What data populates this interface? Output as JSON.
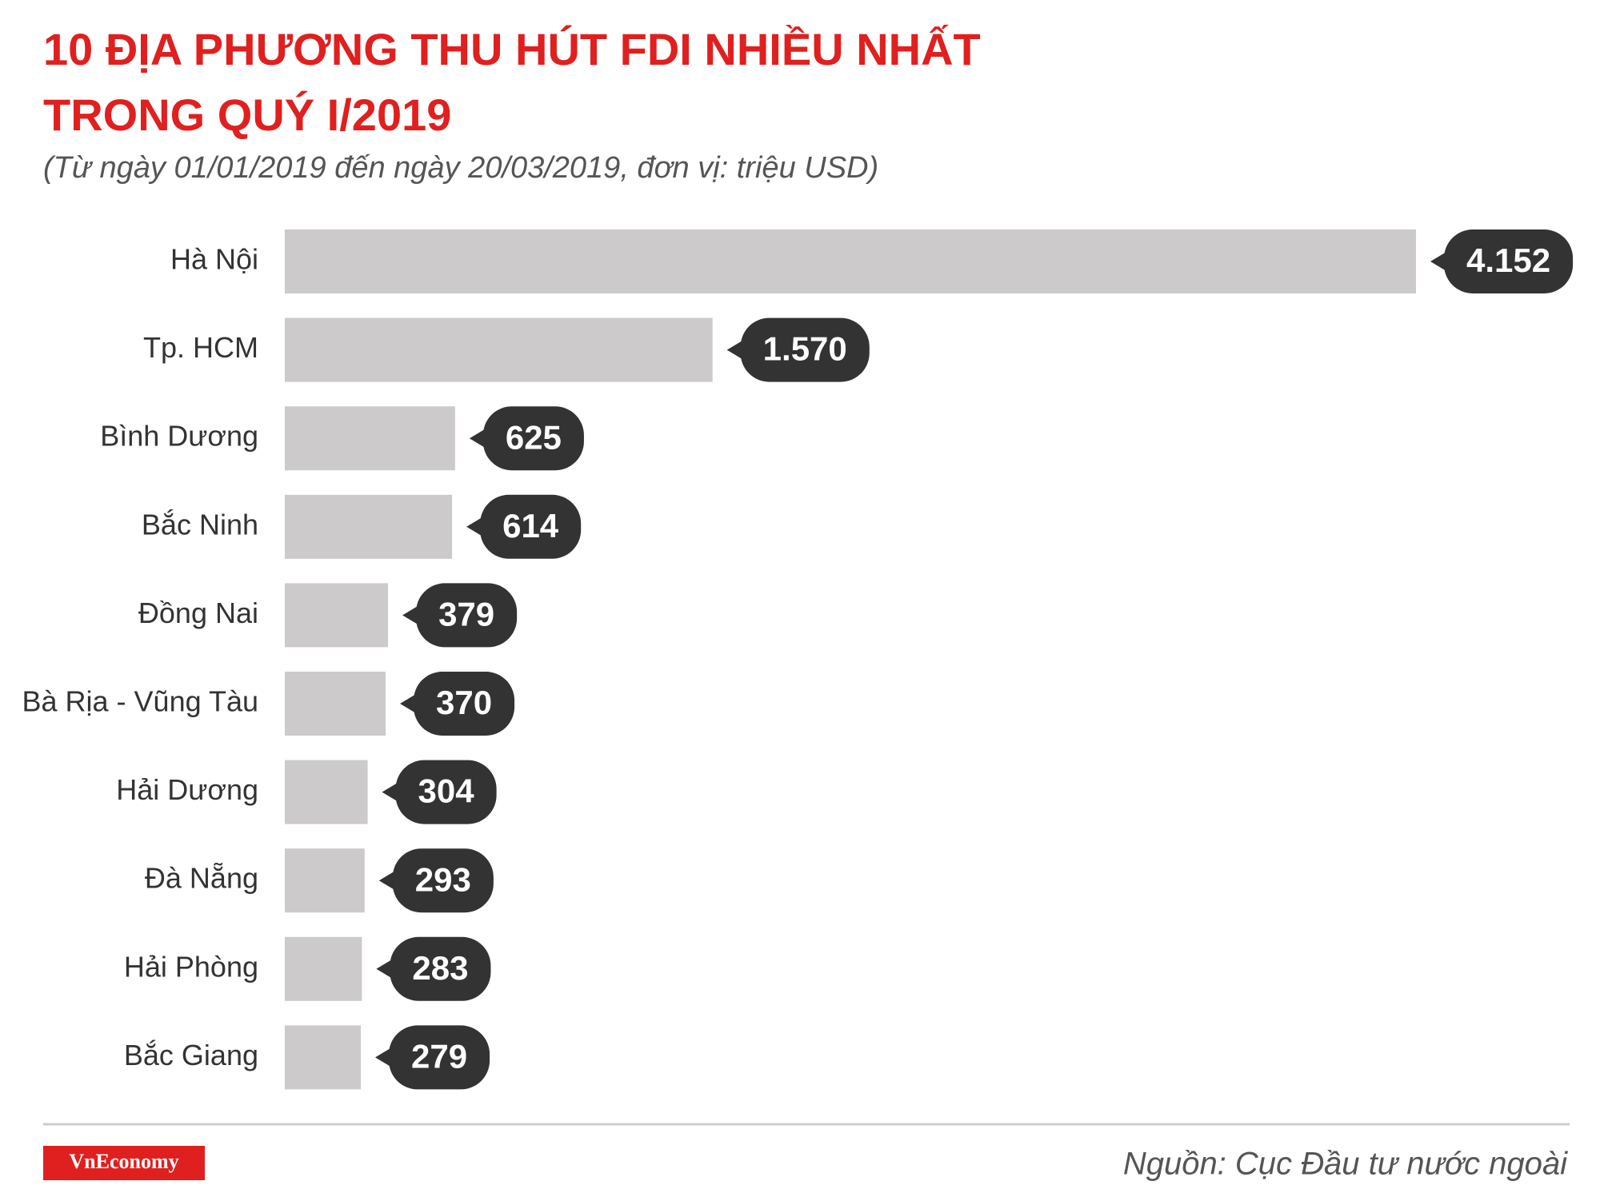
{
  "chart_data": {
    "type": "bar",
    "orientation": "horizontal",
    "title": [
      "10 ĐỊA PHƯƠNG THU HÚT FDI NHIỀU NHẤT",
      "TRONG QUÝ I/2019"
    ],
    "subtitle": "(Từ ngày 01/01/2019 đến ngày 20/03/2019, đơn vị: triệu USD)",
    "categories": [
      "Hà Nội",
      "Tp. HCM",
      "Bình Dương",
      "Bắc Ninh",
      "Đồng Nai",
      "Bà Rịa - Vũng Tàu",
      "Hải Dương",
      "Đà Nẵng",
      "Hải Phòng",
      "Bắc Giang"
    ],
    "values": [
      4152,
      1570,
      625,
      614,
      379,
      370,
      304,
      293,
      283,
      279
    ],
    "value_labels": [
      "4.152",
      "1.570",
      "625",
      "614",
      "379",
      "370",
      "304",
      "293",
      "283",
      "279"
    ],
    "color": "#cccacb",
    "label_color": "#333333"
  },
  "footer": {
    "logo": "VnEconomy",
    "source": "Nguồn: Cục Đầu tư nước ngoài"
  }
}
